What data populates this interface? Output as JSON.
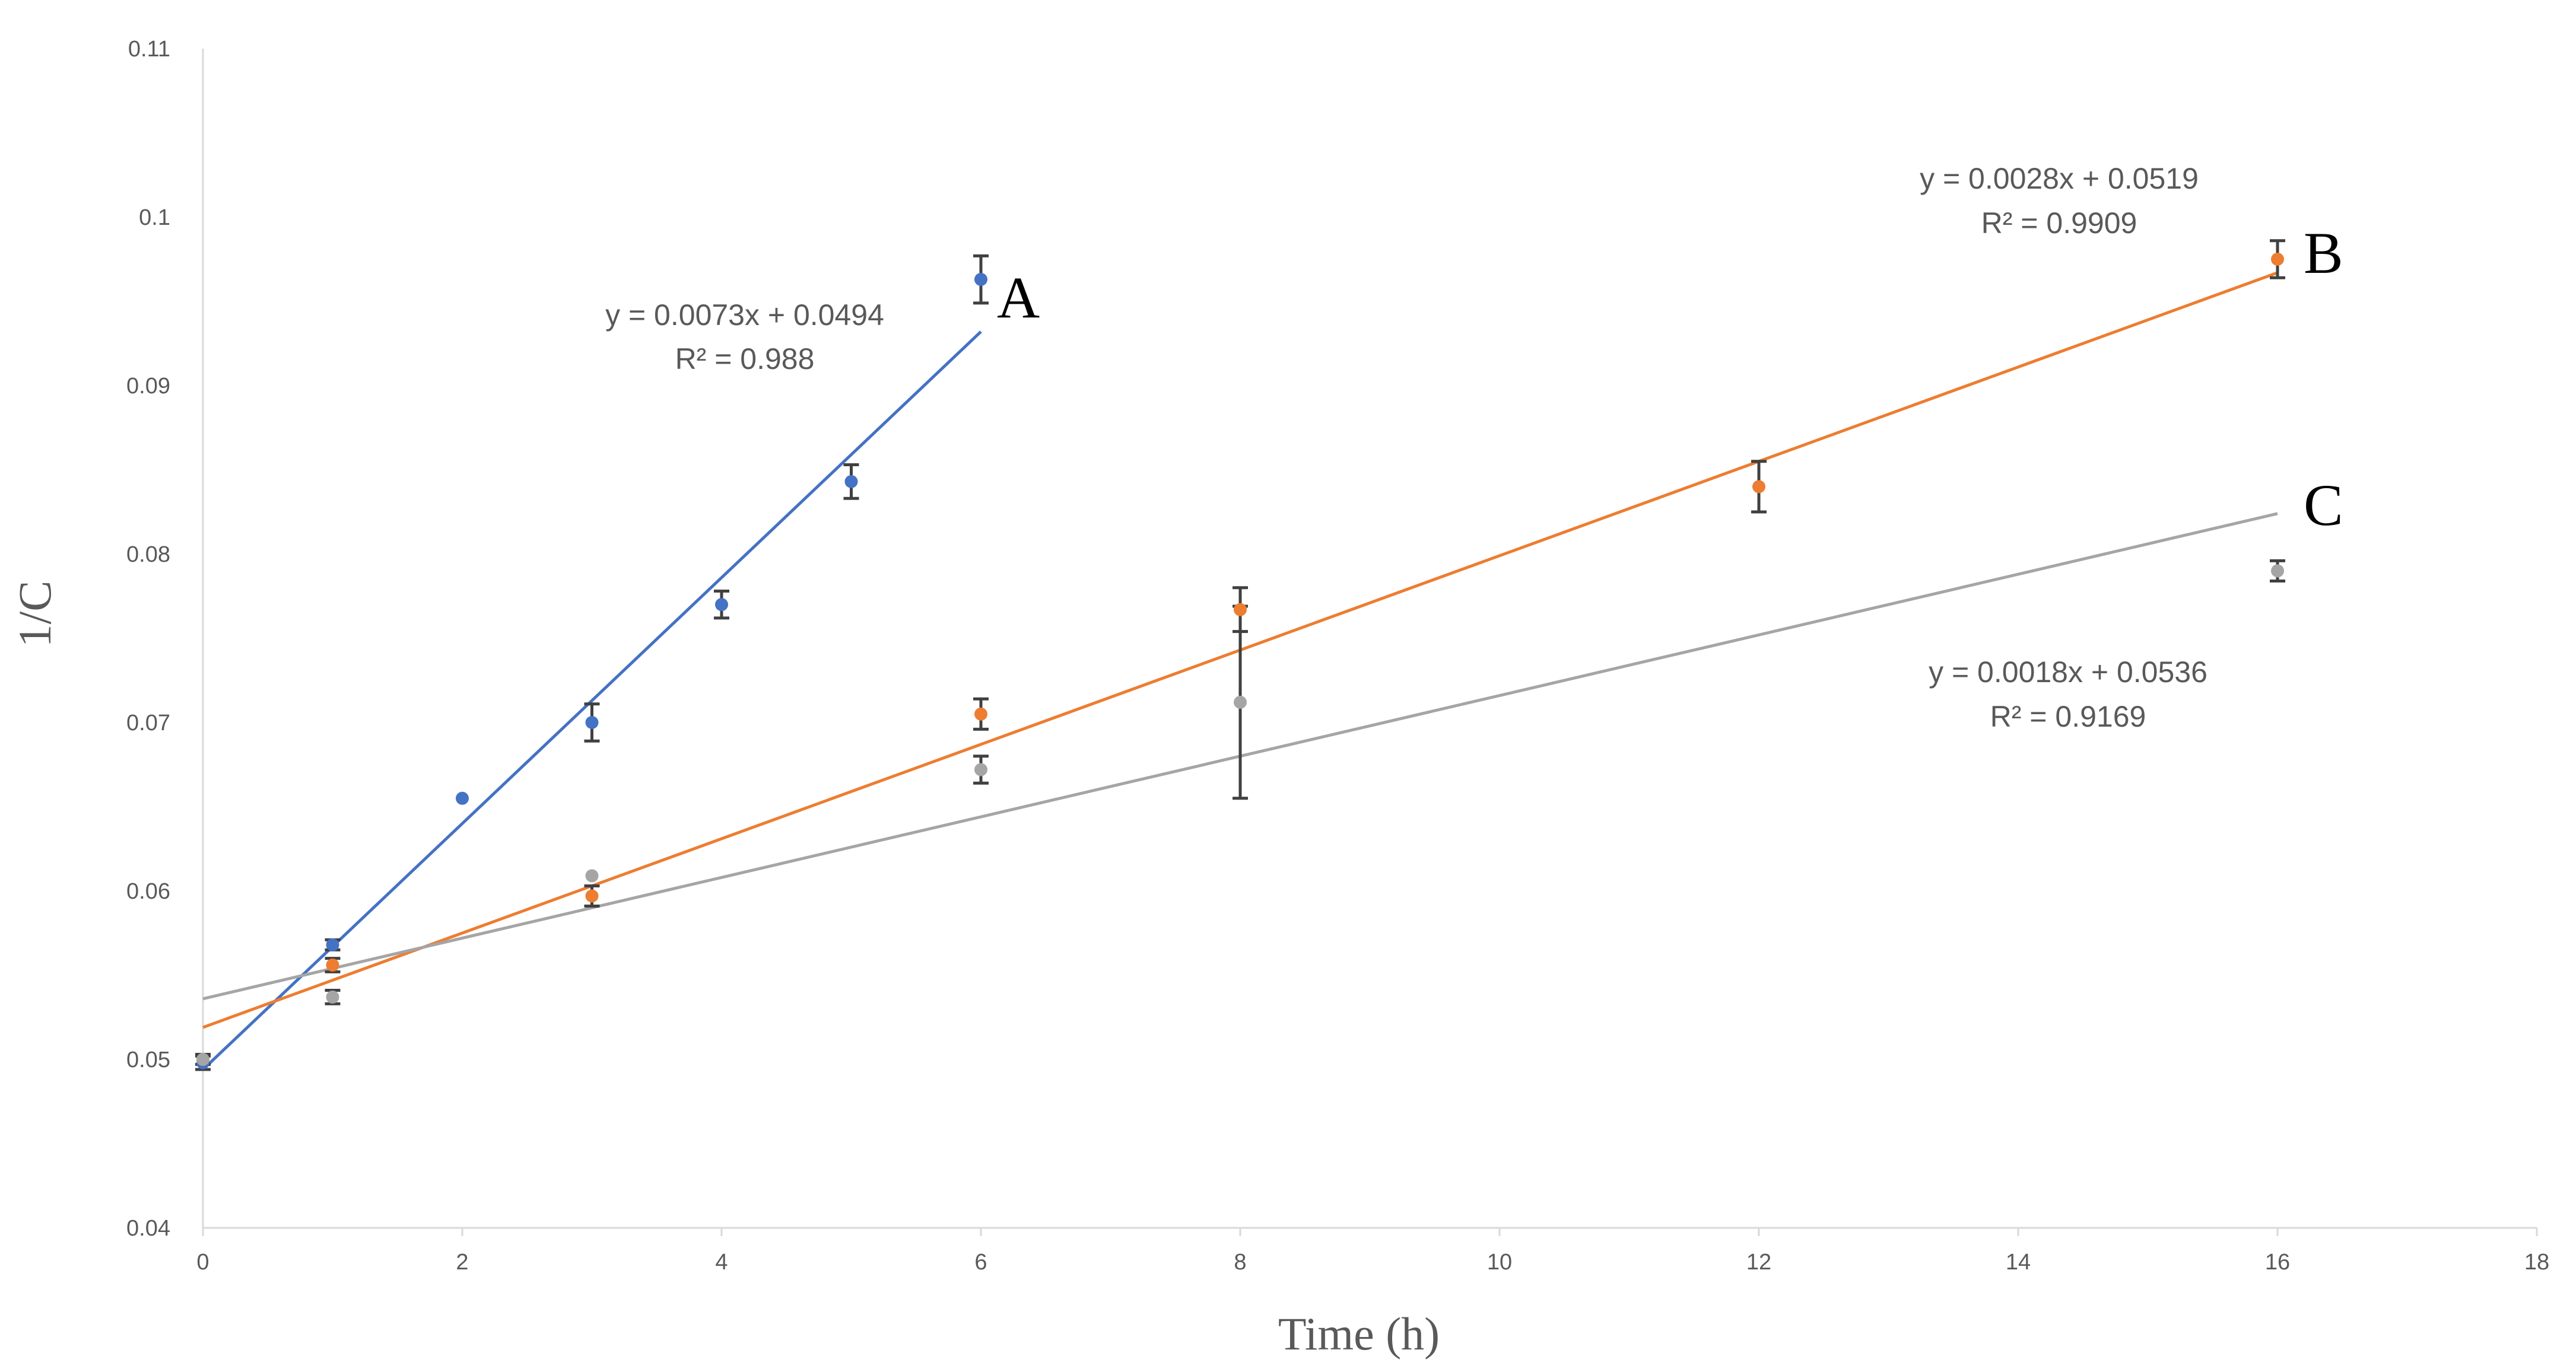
{
  "chart_data": {
    "type": "scatter",
    "title": "",
    "xlabel": "Time (h)",
    "ylabel": "1/C",
    "xlim": [
      0,
      18
    ],
    "ylim": [
      0.04,
      0.11
    ],
    "xticks": [
      0,
      2,
      4,
      6,
      8,
      10,
      12,
      14,
      16,
      18
    ],
    "yticks": [
      0.04,
      0.05,
      0.06,
      0.07,
      0.08,
      0.09,
      0.1,
      0.11
    ],
    "ytick_labels": [
      "0.04",
      "0.05",
      "0.06",
      "0.07",
      "0.08",
      "0.09",
      "0.1",
      "0.11"
    ],
    "grid": false,
    "axis_color": "#d9d9d9",
    "errorbar_color": "#404040",
    "series": [
      {
        "name": "A",
        "color": "#4472c4",
        "x": [
          0,
          1,
          2,
          3,
          4,
          5,
          6
        ],
        "y": [
          0.0498,
          0.0568,
          0.0655,
          0.07,
          0.077,
          0.0843,
          0.0963
        ],
        "err": [
          0.0004,
          0.0003,
          0.0,
          0.0011,
          0.0008,
          0.001,
          0.0014
        ],
        "trend": {
          "slope": 0.0073,
          "intercept": 0.0494,
          "x_range": [
            0,
            6
          ]
        },
        "equation": "y = 0.0073x + 0.0494",
        "r2": "R² = 0.988"
      },
      {
        "name": "B",
        "color": "#ed7d31",
        "x": [
          0,
          1,
          3,
          6,
          8,
          12,
          16
        ],
        "y": [
          0.05,
          0.0556,
          0.0597,
          0.0705,
          0.0767,
          0.084,
          0.0975
        ],
        "err": [
          0.0003,
          0.0004,
          0.0006,
          0.0009,
          0.0013,
          0.0015,
          0.0011
        ],
        "trend": {
          "slope": 0.0028,
          "intercept": 0.0519,
          "x_range": [
            0,
            16
          ]
        },
        "equation": "y = 0.0028x + 0.0519",
        "r2": "R² = 0.9909"
      },
      {
        "name": "C",
        "color": "#a5a5a5",
        "x": [
          0,
          1,
          3,
          6,
          8,
          16
        ],
        "y": [
          0.05,
          0.0537,
          0.0609,
          0.0672,
          0.0712,
          0.079
        ],
        "err": [
          0.0003,
          0.0004,
          0.0,
          0.0008,
          0.0057,
          0.0006
        ],
        "trend": {
          "slope": 0.0018,
          "intercept": 0.0536,
          "x_range": [
            0,
            16
          ]
        },
        "equation": "y = 0.0018x + 0.0536",
        "r2": "R² = 0.9169"
      }
    ]
  }
}
